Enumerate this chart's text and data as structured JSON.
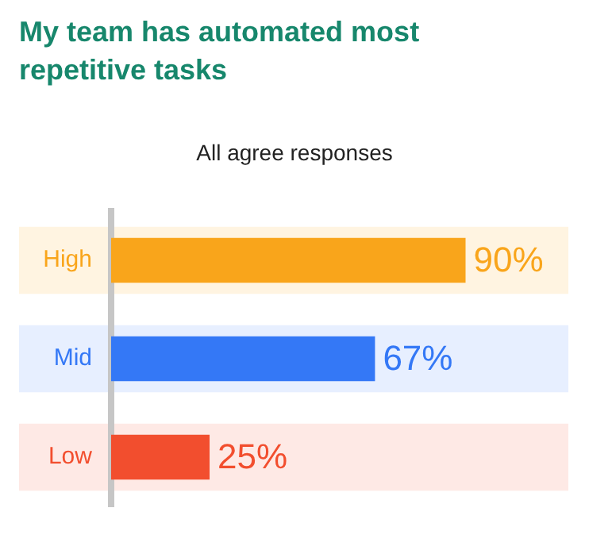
{
  "chart_data": {
    "type": "bar",
    "orientation": "horizontal",
    "title": "My team has automated most repetitive tasks",
    "subtitle": "All agree responses",
    "categories": [
      "High",
      "Mid",
      "Low"
    ],
    "values": [
      90,
      67,
      25
    ],
    "colors": [
      "#f9a51b",
      "#3478f6",
      "#f24e2e"
    ],
    "value_labels": [
      "90%",
      "67%",
      "25%"
    ],
    "bands": [
      {
        "axis": "y",
        "from": "High",
        "to": "High",
        "color": "#fff4e1"
      },
      {
        "axis": "y",
        "from": "Mid",
        "to": "Mid",
        "color": "#e7efff"
      },
      {
        "axis": "y",
        "from": "Low",
        "to": "Low",
        "color": "#fee9e5"
      }
    ],
    "grid": false,
    "legend": false,
    "tick_labels": "y"
  }
}
